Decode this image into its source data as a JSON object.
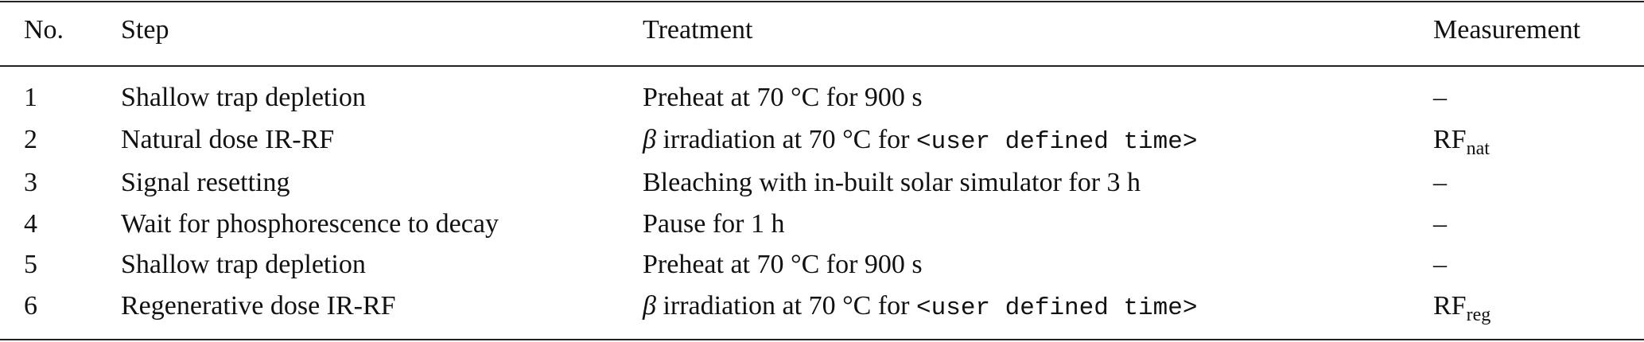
{
  "table": {
    "headers": [
      "No.",
      "Step",
      "Treatment",
      "Measurement"
    ],
    "rows": [
      {
        "no": "1",
        "step": "Shallow trap depletion",
        "treatment": {
          "prefix": "",
          "text": "Preheat at 70 °C for 900 s",
          "code": ""
        },
        "measurement": {
          "main": "–",
          "sub": ""
        }
      },
      {
        "no": "2",
        "step": "Natural dose IR-RF",
        "treatment": {
          "prefix": "β",
          "text": " irradiation at 70 °C for ",
          "code": "<user defined time>"
        },
        "measurement": {
          "main": "RF",
          "sub": "nat"
        }
      },
      {
        "no": "3",
        "step": "Signal resetting",
        "treatment": {
          "prefix": "",
          "text": "Bleaching with in-built solar simulator for 3 h",
          "code": ""
        },
        "measurement": {
          "main": "–",
          "sub": ""
        }
      },
      {
        "no": "4",
        "step": "Wait for phosphorescence to decay",
        "treatment": {
          "prefix": "",
          "text": "Pause for 1 h",
          "code": ""
        },
        "measurement": {
          "main": "–",
          "sub": ""
        }
      },
      {
        "no": "5",
        "step": "Shallow trap depletion",
        "treatment": {
          "prefix": "",
          "text": "Preheat at 70 °C for 900 s",
          "code": ""
        },
        "measurement": {
          "main": "–",
          "sub": ""
        }
      },
      {
        "no": "6",
        "step": "Regenerative dose IR-RF",
        "treatment": {
          "prefix": "β",
          "text": " irradiation at 70 °C for ",
          "code": "<user defined time>"
        },
        "measurement": {
          "main": "RF",
          "sub": "reg"
        }
      }
    ]
  }
}
